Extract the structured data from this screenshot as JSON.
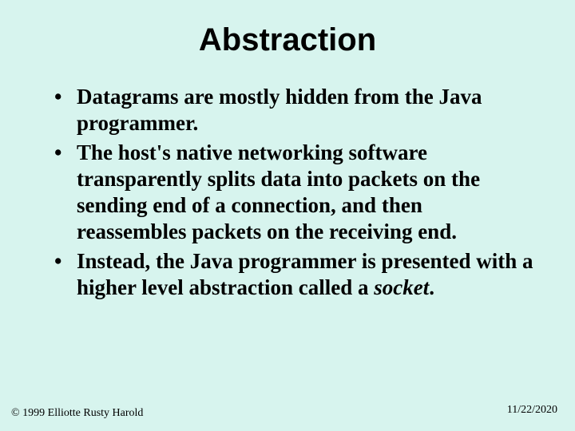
{
  "slide": {
    "background_color": "#d7f4ee",
    "title": {
      "text": "Abstraction",
      "font_family": "Arial",
      "font_size": 40,
      "font_weight": "bold",
      "color": "#000000",
      "align": "center"
    },
    "bullets": {
      "font_family": "Times New Roman",
      "font_size": 27,
      "font_weight": "bold",
      "color": "#000000",
      "items": [
        {
          "text": "Datagrams are mostly hidden from the Java programmer."
        },
        {
          "text": "The host's native networking software transparently splits data into packets on the sending end of a connection, and then reassembles packets on the receiving end."
        },
        {
          "text_prefix": "Instead, the Java programmer is presented with a higher level abstraction called a ",
          "italic_word": "socket",
          "text_suffix": "."
        }
      ]
    },
    "footer": {
      "left": "© 1999 Elliotte Rusty Harold",
      "right": "11/22/2020",
      "font_size": 14,
      "color": "#000000"
    }
  }
}
